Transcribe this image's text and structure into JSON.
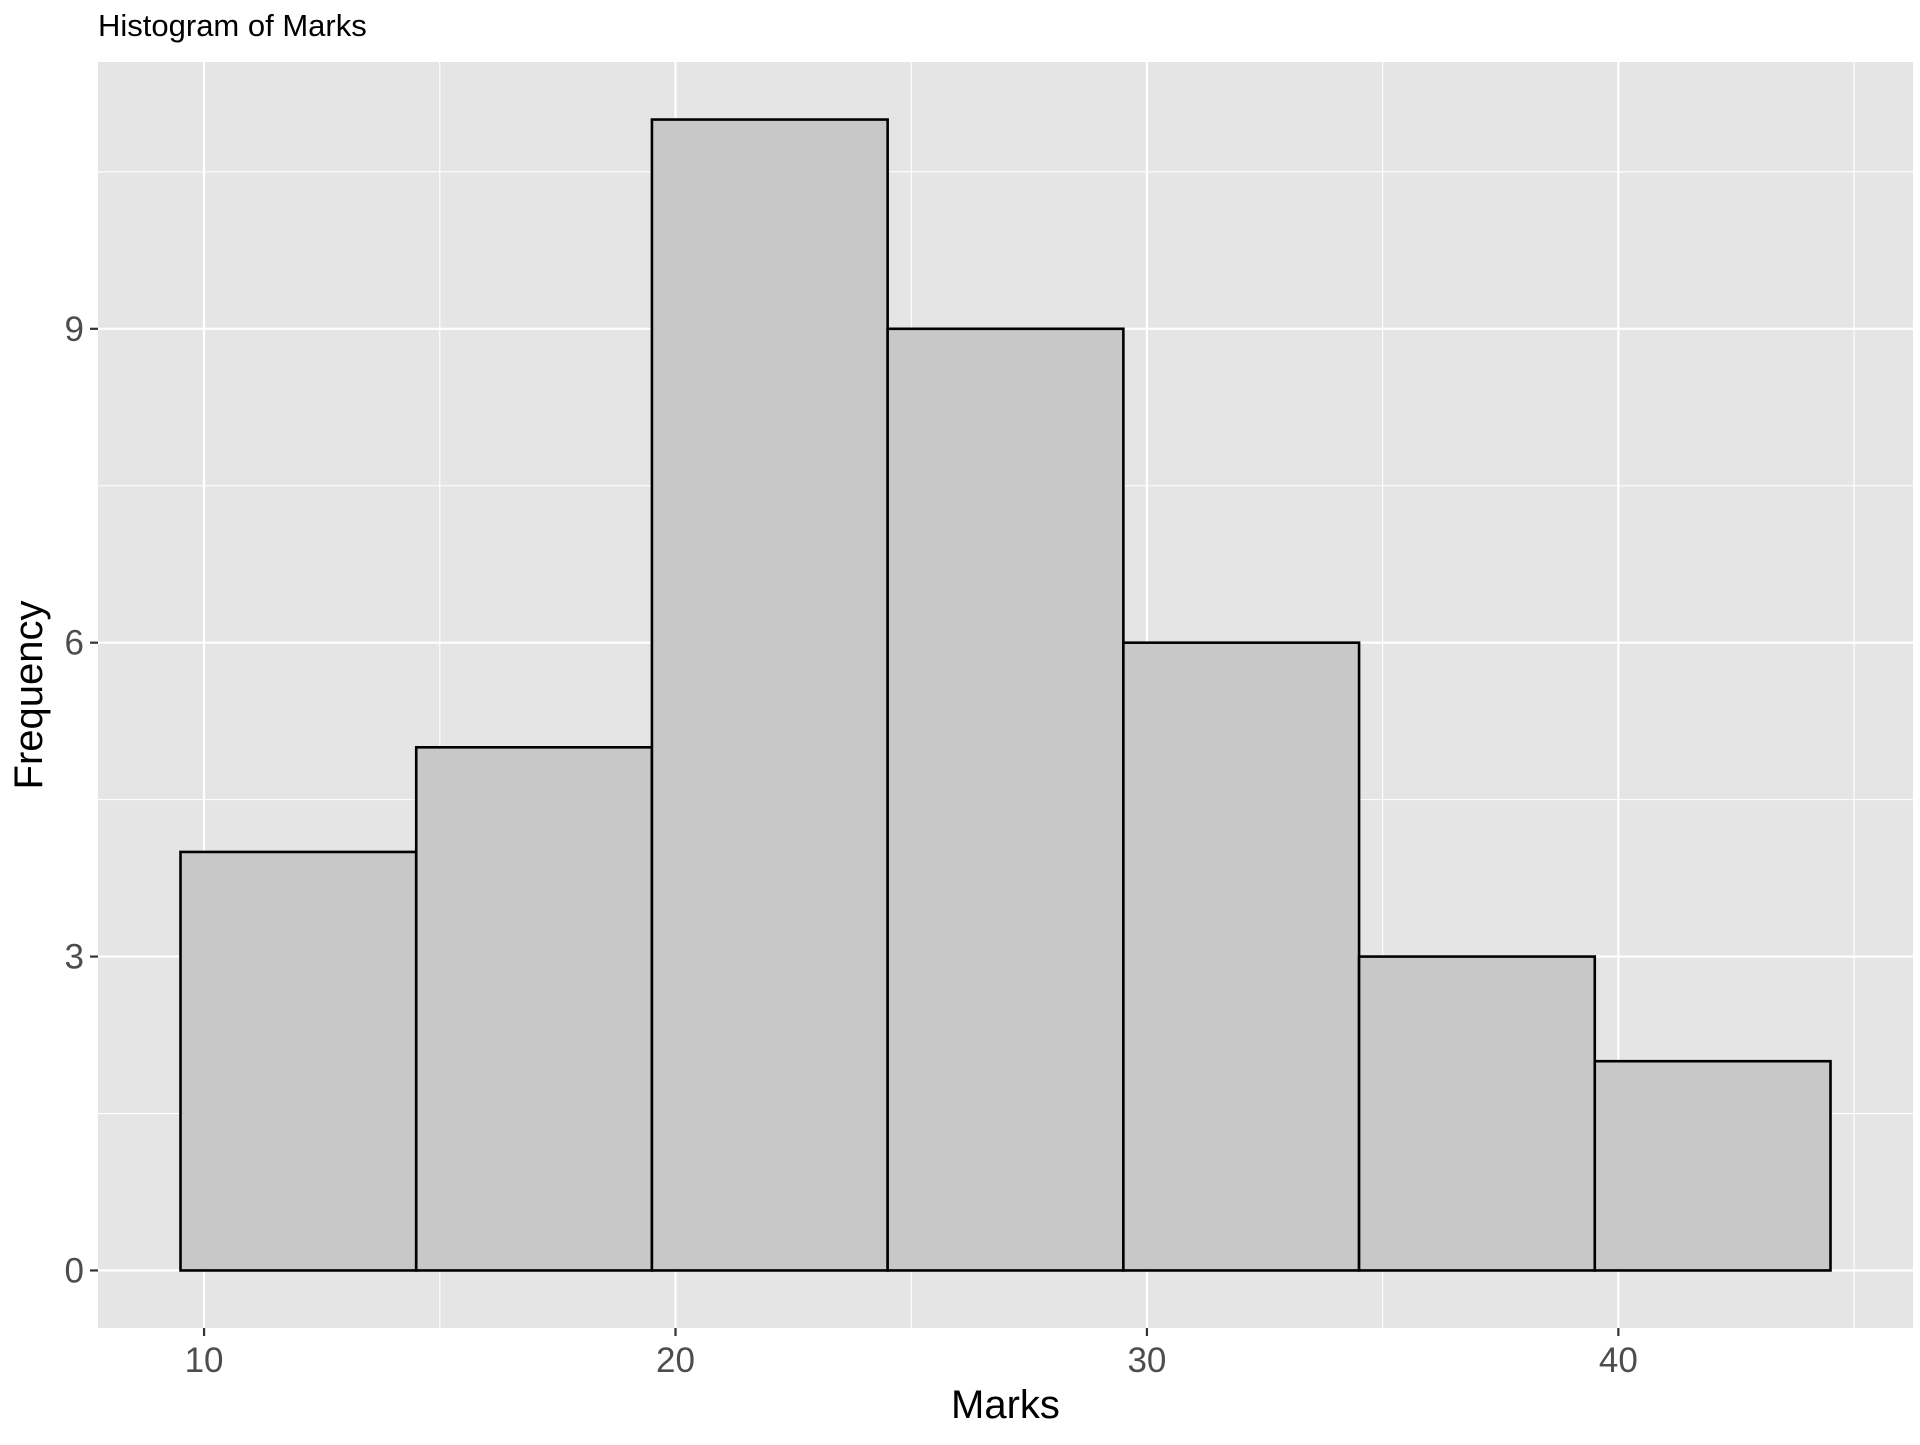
{
  "chart_data": {
    "type": "bar",
    "title": "Histogram of Marks",
    "xlabel": "Marks",
    "ylabel": "Frequency",
    "bins": [
      {
        "x_start": 9.5,
        "x_end": 14.5,
        "value": 4
      },
      {
        "x_start": 14.5,
        "x_end": 19.5,
        "value": 5
      },
      {
        "x_start": 19.5,
        "x_end": 24.5,
        "value": 11
      },
      {
        "x_start": 24.5,
        "x_end": 29.5,
        "value": 9
      },
      {
        "x_start": 29.5,
        "x_end": 34.5,
        "value": 6
      },
      {
        "x_start": 34.5,
        "x_end": 39.5,
        "value": 3
      },
      {
        "x_start": 39.5,
        "x_end": 44.5,
        "value": 2
      }
    ],
    "xlim": [
      7.75,
      46.25
    ],
    "ylim": [
      -0.55,
      11.55
    ],
    "x_ticks": [
      10,
      20,
      30,
      40
    ],
    "y_ticks": [
      0,
      3,
      6,
      9
    ],
    "x_minor": [
      15,
      25,
      35,
      45
    ],
    "y_minor": [
      1.5,
      4.5,
      7.5,
      10.5
    ],
    "grid": true,
    "colors": {
      "panel_background": "#e5e5e5",
      "grid": "#ffffff",
      "bar_fill": "#c8c8c8",
      "bar_outline": "#000000",
      "tick_label": "#4d4d4d",
      "axis_title": "#000000"
    }
  }
}
